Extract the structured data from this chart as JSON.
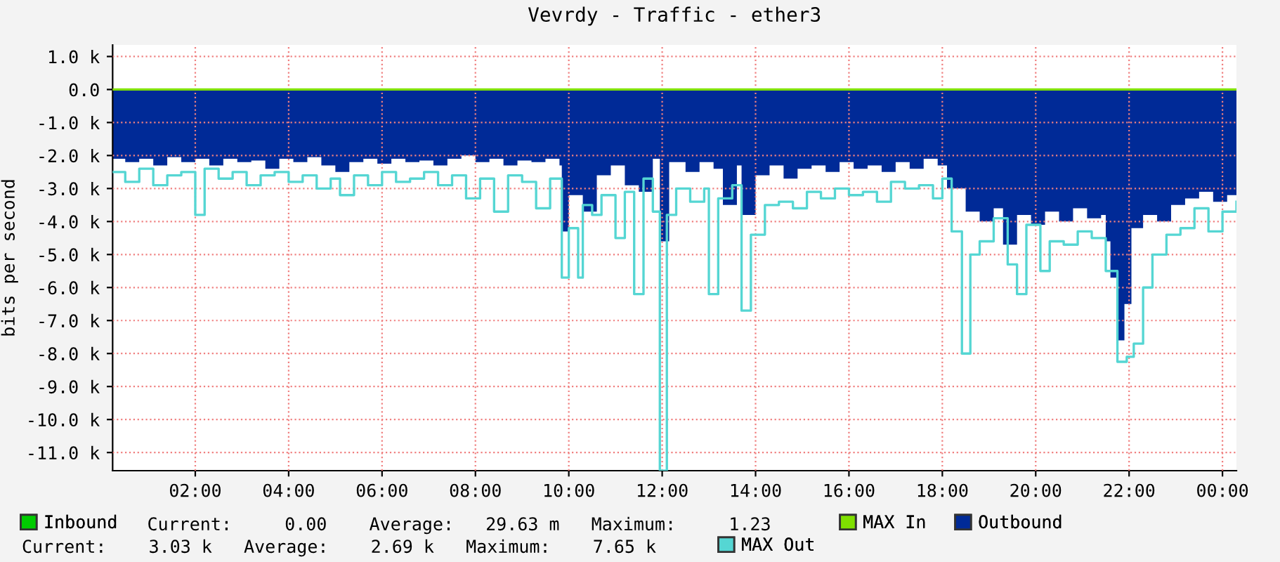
{
  "chart_data": {
    "type": "area",
    "title": "Vevrdy - Traffic - ether3",
    "ylabel": "bits per second",
    "xlim": [
      0.23,
      24.3
    ],
    "xticks": [
      {
        "value": 2,
        "label": "02:00"
      },
      {
        "value": 4,
        "label": "04:00"
      },
      {
        "value": 6,
        "label": "06:00"
      },
      {
        "value": 8,
        "label": "08:00"
      },
      {
        "value": 10,
        "label": "10:00"
      },
      {
        "value": 12,
        "label": "12:00"
      },
      {
        "value": 14,
        "label": "14:00"
      },
      {
        "value": 16,
        "label": "16:00"
      },
      {
        "value": 18,
        "label": "18:00"
      },
      {
        "value": 20,
        "label": "20:00"
      },
      {
        "value": 22,
        "label": "22:00"
      },
      {
        "value": 24,
        "label": "00:00"
      }
    ],
    "ylim": [
      -11550,
      1350
    ],
    "yticks": [
      {
        "value": 1000,
        "label": "1.0 k"
      },
      {
        "value": 0,
        "label": "0.0"
      },
      {
        "value": -1000,
        "label": "-1.0 k"
      },
      {
        "value": -2000,
        "label": "-2.0 k"
      },
      {
        "value": -3000,
        "label": "-3.0 k"
      },
      {
        "value": -4000,
        "label": "-4.0 k"
      },
      {
        "value": -5000,
        "label": "-5.0 k"
      },
      {
        "value": -6000,
        "label": "-6.0 k"
      },
      {
        "value": -7000,
        "label": "-7.0 k"
      },
      {
        "value": -8000,
        "label": "-8.0 k"
      },
      {
        "value": -9000,
        "label": "-9.0 k"
      },
      {
        "value": -10000,
        "label": "-10.0 k"
      },
      {
        "value": -11000,
        "label": "-11.0 k"
      }
    ],
    "grid": true,
    "legend": "bottom left",
    "line_style": "solid",
    "series": [
      {
        "name": "Inbound",
        "color": "#00cc00"
      },
      {
        "name": "MAX In",
        "type": "step",
        "color": "#7fe000",
        "x": [
          0.23,
          24.3
        ],
        "values": [
          0,
          0
        ]
      },
      {
        "name": "Outbound",
        "color": "#002a97",
        "x": [
          0.23,
          0.5,
          0.8,
          1.1,
          1.4,
          1.7,
          2.0,
          2.3,
          2.6,
          2.9,
          3.2,
          3.5,
          3.8,
          4.1,
          4.4,
          4.7,
          5.0,
          5.3,
          5.6,
          5.9,
          6.2,
          6.5,
          6.8,
          7.1,
          7.4,
          7.7,
          8.0,
          8.3,
          8.6,
          8.9,
          9.2,
          9.5,
          9.8,
          9.85,
          10.0,
          10.3,
          10.6,
          10.9,
          11.2,
          11.5,
          11.8,
          11.95,
          12.15,
          12.5,
          12.8,
          13.1,
          13.3,
          13.6,
          13.7,
          14.0,
          14.3,
          14.6,
          14.9,
          15.2,
          15.5,
          15.8,
          16.1,
          16.4,
          16.7,
          17.0,
          17.3,
          17.6,
          17.9,
          18.1,
          18.5,
          18.8,
          19.1,
          19.3,
          19.6,
          19.9,
          20.2,
          20.5,
          20.8,
          21.1,
          21.4,
          21.5,
          21.6,
          21.75,
          21.9,
          22.05,
          22.3,
          22.6,
          22.9,
          23.2,
          23.5,
          23.8,
          24.1,
          24.3
        ],
        "values": [
          -2100,
          -2200,
          -2100,
          -2300,
          -2050,
          -2200,
          -2100,
          -2300,
          -2100,
          -2200,
          -2150,
          -2400,
          -2100,
          -2200,
          -2050,
          -2300,
          -2500,
          -2200,
          -2100,
          -2250,
          -2100,
          -2200,
          -2150,
          -2300,
          -2100,
          -2000,
          -2200,
          -2100,
          -2300,
          -2150,
          -2200,
          -2100,
          -2300,
          -4300,
          -3200,
          -3700,
          -2600,
          -2300,
          -2900,
          -3100,
          -2100,
          -4600,
          -2200,
          -2500,
          -2200,
          -2400,
          -3500,
          -2300,
          -3800,
          -2600,
          -2300,
          -2700,
          -2400,
          -2300,
          -2500,
          -2200,
          -2400,
          -2300,
          -2500,
          -2200,
          -2400,
          -2100,
          -2300,
          -3000,
          -3700,
          -4000,
          -3600,
          -4700,
          -3800,
          -4100,
          -3700,
          -4000,
          -3600,
          -3900,
          -3800,
          -4600,
          -5700,
          -7600,
          -6500,
          -4200,
          -3800,
          -4000,
          -3500,
          -3300,
          -3100,
          -3400,
          -3200,
          -3030
        ]
      },
      {
        "name": "MAX Out",
        "type": "step",
        "color": "#55d6d3",
        "x": [
          0.23,
          0.5,
          0.8,
          1.1,
          1.4,
          1.7,
          2.0,
          2.2,
          2.5,
          2.8,
          3.1,
          3.4,
          3.7,
          4.0,
          4.3,
          4.6,
          4.9,
          5.1,
          5.4,
          5.7,
          6.0,
          6.3,
          6.6,
          6.9,
          7.2,
          7.5,
          7.8,
          8.1,
          8.4,
          8.7,
          9.0,
          9.3,
          9.6,
          9.85,
          10.0,
          10.2,
          10.3,
          10.5,
          10.7,
          11.0,
          11.2,
          11.4,
          11.6,
          11.8,
          11.95,
          12.1,
          12.3,
          12.6,
          12.9,
          13.0,
          13.2,
          13.5,
          13.7,
          13.9,
          14.2,
          14.5,
          14.8,
          15.1,
          15.4,
          15.7,
          16.0,
          16.3,
          16.6,
          16.9,
          17.2,
          17.5,
          17.8,
          18.0,
          18.2,
          18.42,
          18.6,
          18.8,
          19.1,
          19.4,
          19.6,
          19.8,
          20.1,
          20.3,
          20.6,
          20.9,
          21.2,
          21.5,
          21.75,
          21.95,
          22.1,
          22.3,
          22.5,
          22.8,
          23.1,
          23.4,
          23.7,
          24.0,
          24.3
        ],
        "values": [
          -2500,
          -2800,
          -2400,
          -2900,
          -2600,
          -2500,
          -3800,
          -2400,
          -2700,
          -2500,
          -2900,
          -2600,
          -2500,
          -2800,
          -2600,
          -3000,
          -2700,
          -3200,
          -2600,
          -2900,
          -2500,
          -2800,
          -2700,
          -2500,
          -2900,
          -2600,
          -3300,
          -2700,
          -3700,
          -2600,
          -2800,
          -3600,
          -2700,
          -5700,
          -4200,
          -5700,
          -3500,
          -3800,
          -3200,
          -4500,
          -3100,
          -6200,
          -2700,
          -3700,
          -11550,
          -3800,
          -3000,
          -3400,
          -3000,
          -6200,
          -3300,
          -2900,
          -6700,
          -4400,
          -3500,
          -3400,
          -3600,
          -3100,
          -3300,
          -3000,
          -3200,
          -3100,
          -3400,
          -2800,
          -3000,
          -2900,
          -3300,
          -2700,
          -4300,
          -8000,
          -5000,
          -4600,
          -3900,
          -5300,
          -6200,
          -4100,
          -5500,
          -4600,
          -4700,
          -4300,
          -4500,
          -5500,
          -8250,
          -8100,
          -7700,
          -6000,
          -5000,
          -4400,
          -4200,
          -3600,
          -4300,
          -3700,
          -3400
        ]
      }
    ],
    "annotations": [
      "Current:     0.00    Average:   29.63 m   Maximum:     1.23",
      "Current:    3.03 k   Average:    2.69 k   Maximum:    7.65 k"
    ]
  }
}
